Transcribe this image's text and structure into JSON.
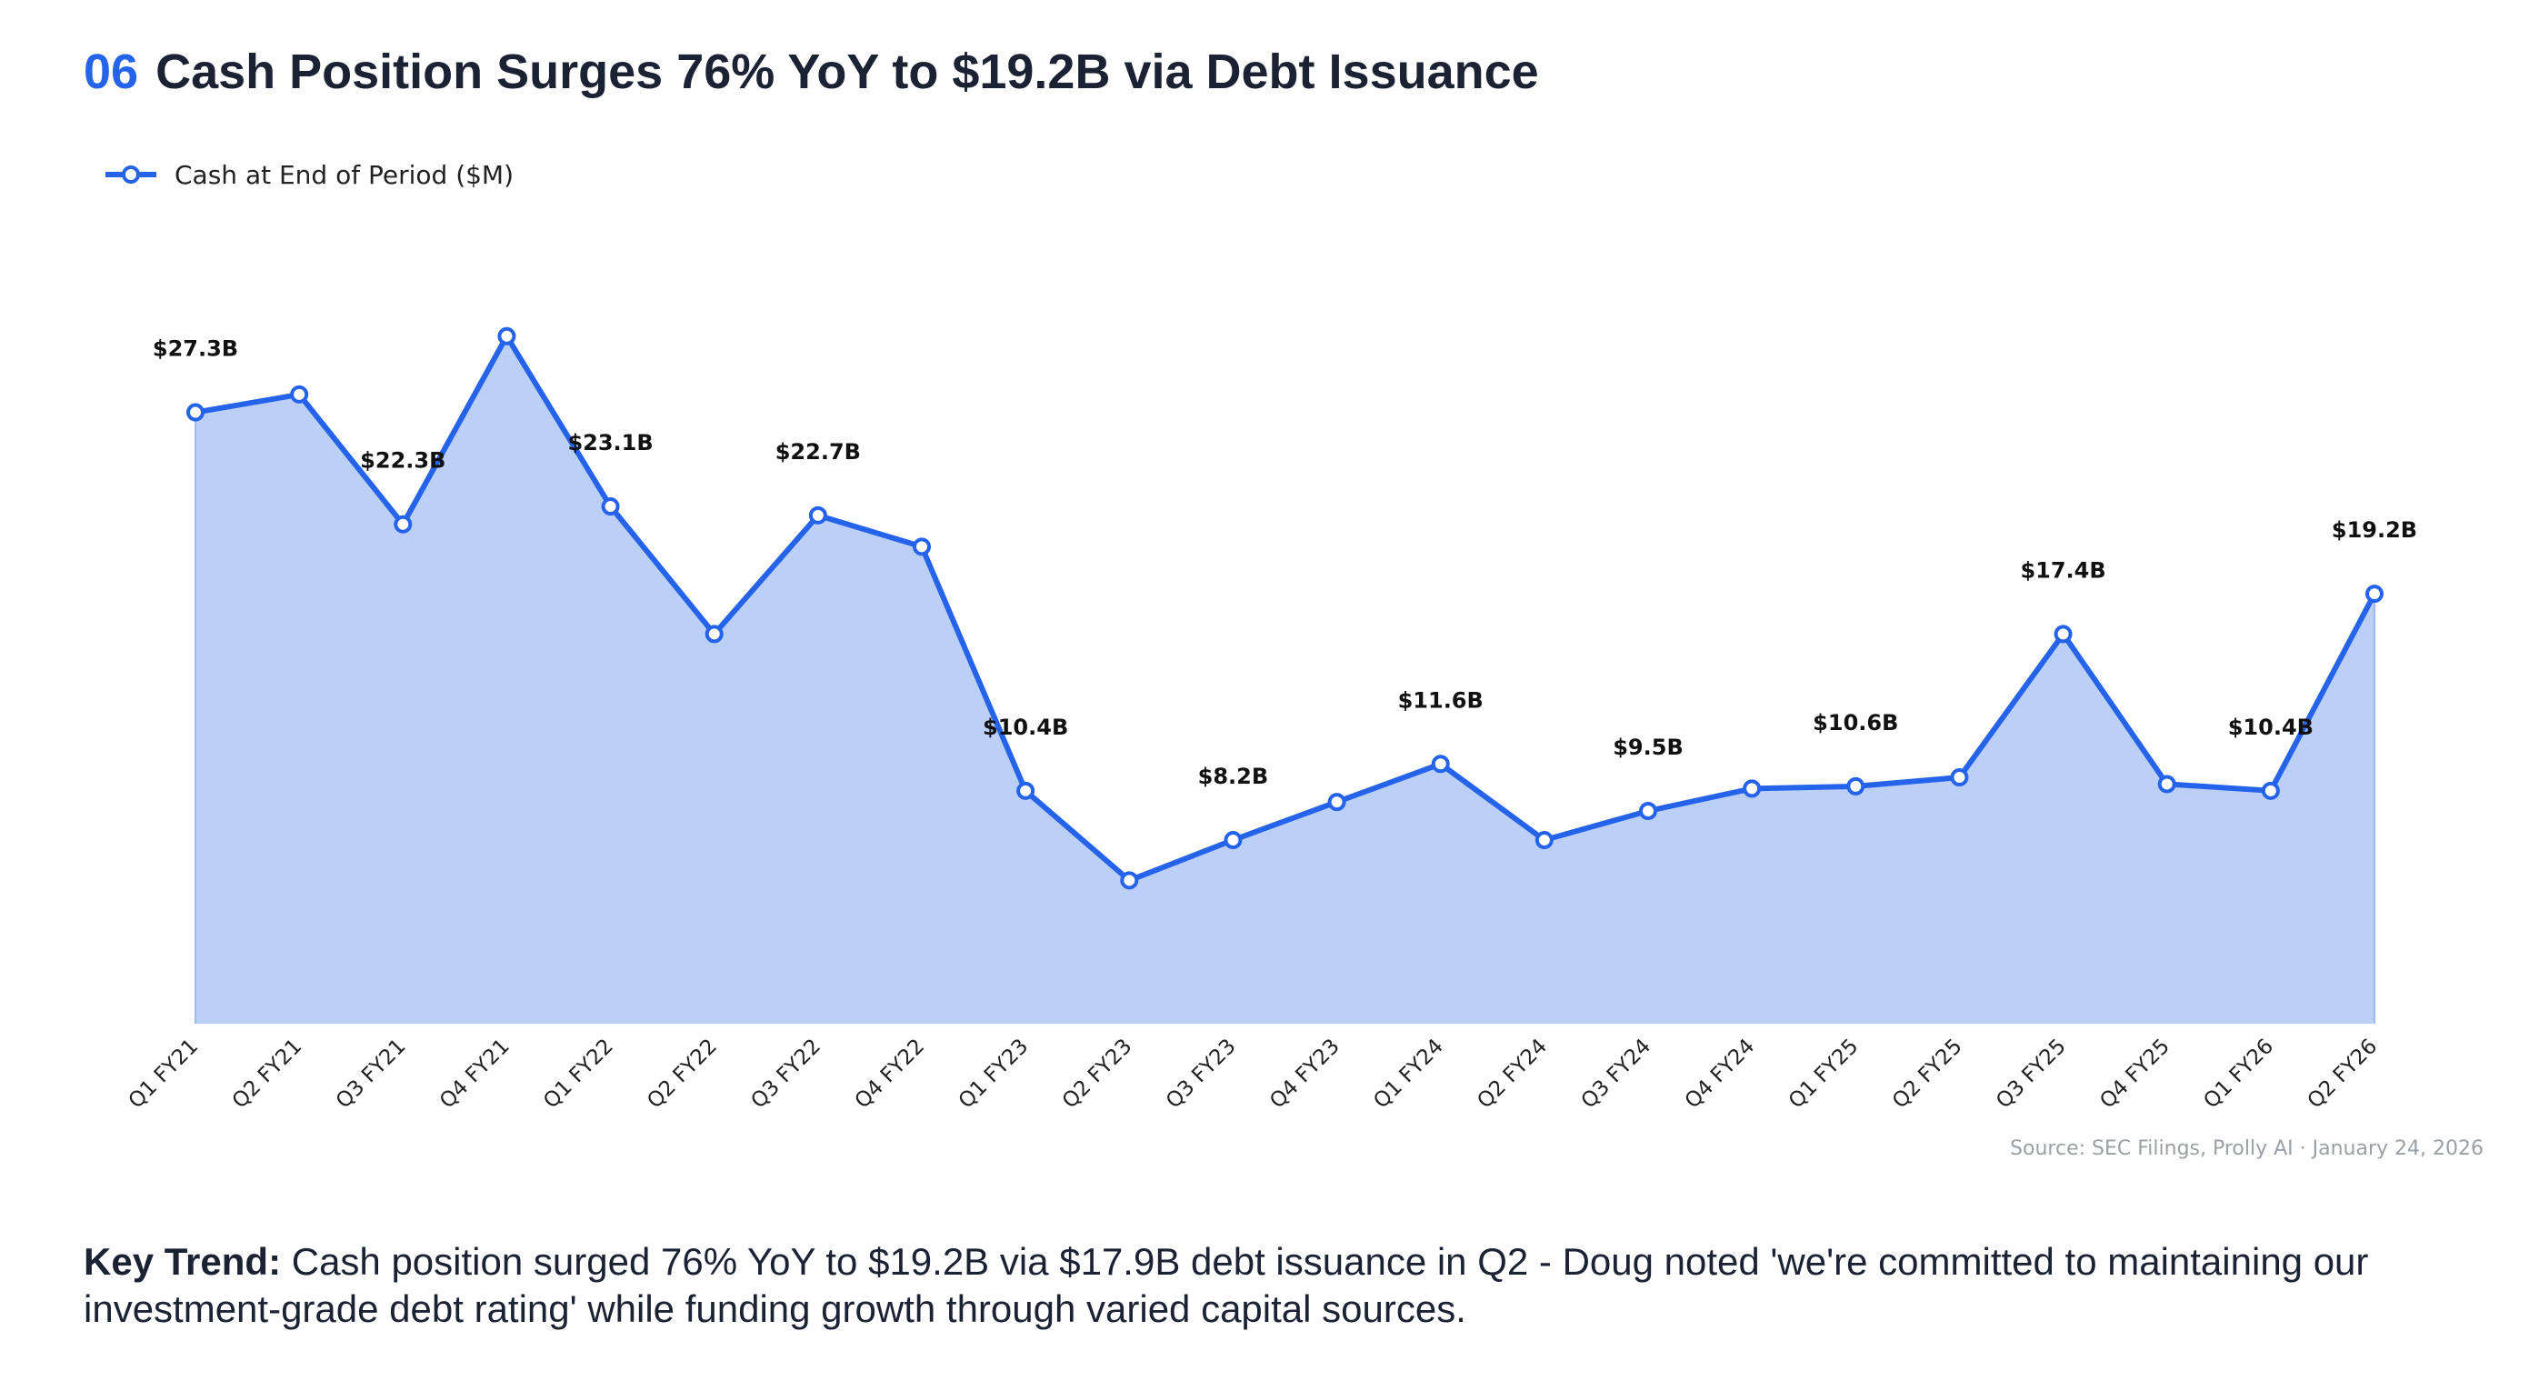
{
  "heading": {
    "number": "06",
    "text": "Cash Position Surges 76% YoY to $19.2B via Debt Issuance"
  },
  "colors": {
    "accent": "#2563eb",
    "fill": "#bcd0f7",
    "source_text": "#9aa0a6"
  },
  "chart_data": {
    "type": "area",
    "categories": [
      "Q1 FY21",
      "Q2 FY21",
      "Q3 FY21",
      "Q4 FY21",
      "Q1 FY22",
      "Q2 FY22",
      "Q3 FY22",
      "Q4 FY22",
      "Q1 FY23",
      "Q2 FY23",
      "Q3 FY23",
      "Q4 FY23",
      "Q1 FY24",
      "Q2 FY24",
      "Q3 FY24",
      "Q4 FY24",
      "Q1 FY25",
      "Q2 FY25",
      "Q3 FY25",
      "Q4 FY25",
      "Q1 FY26",
      "Q2 FY26"
    ],
    "series": [
      {
        "name": "Cash at End of Period ($M)",
        "values": [
          27300,
          28100,
          22300,
          30700,
          23100,
          17400,
          22700,
          21300,
          10400,
          6400,
          8200,
          9900,
          11600,
          8200,
          9500,
          10500,
          10600,
          11000,
          17400,
          10700,
          10400,
          19200
        ],
        "labels": [
          "$27.3B",
          "",
          "$22.3B",
          "",
          "$23.1B",
          "",
          "$22.7B",
          "",
          "$10.4B",
          "",
          "$8.2B",
          "",
          "$11.6B",
          "",
          "$9.5B",
          "",
          "$10.6B",
          "",
          "$17.4B",
          "",
          "$10.4B",
          "$19.2B"
        ]
      }
    ],
    "ylim": [
      0,
      38000
    ],
    "grid": false,
    "legend": "top-left"
  },
  "key_trend": {
    "label": "Key Trend:",
    "text": " Cash position surged 76% YoY to $19.2B via $17.9B debt issuance in Q2 - Doug noted 'we're committed to maintaining our investment-grade debt rating' while funding growth through varied capital sources."
  },
  "source": "Source: SEC Filings, Prolly AI · January 24, 2026"
}
